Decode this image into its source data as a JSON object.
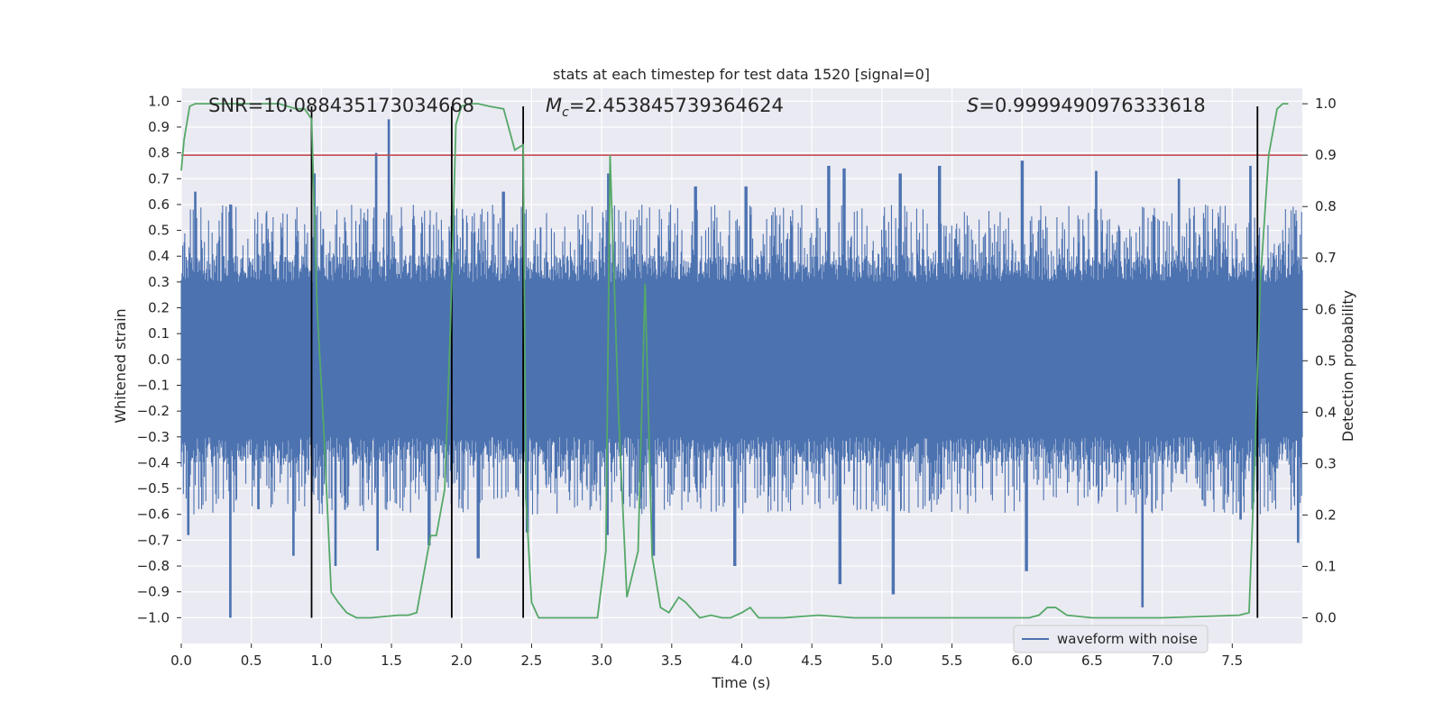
{
  "chart_data": {
    "type": "line",
    "title": "stats at each timestep for test data 1520 [signal=0]",
    "xlabel": "Time (s)",
    "ylabel_left": "Whitened strain",
    "ylabel_right": "Detection probability",
    "xlim": [
      0.0,
      8.0
    ],
    "ylim_left": [
      -1.1,
      1.05
    ],
    "ylim_right": [
      -0.05,
      1.03
    ],
    "x_ticks": [
      "0.0",
      "0.5",
      "1.0",
      "1.5",
      "2.0",
      "2.5",
      "3.0",
      "3.5",
      "4.0",
      "4.5",
      "5.0",
      "5.5",
      "6.0",
      "6.5",
      "7.0",
      "7.5"
    ],
    "y_ticks_left": [
      "1.0",
      "0.9",
      "0.8",
      "0.7",
      "0.6",
      "0.5",
      "0.4",
      "0.3",
      "0.2",
      "0.1",
      "0.0",
      "−0.1",
      "−0.2",
      "−0.3",
      "−0.4",
      "−0.5",
      "−0.6",
      "−0.7",
      "−0.8",
      "−0.9",
      "−1.0"
    ],
    "y_ticks_right": [
      "1.0",
      "0.9",
      "0.8",
      "0.7",
      "0.6",
      "0.5",
      "0.4",
      "0.3",
      "0.2",
      "0.1",
      "0.0"
    ],
    "grid": true,
    "legend": {
      "position": "bottom-right",
      "entries": [
        "waveform with noise"
      ]
    },
    "annotations": {
      "snr": "SNR=10.088435173034668",
      "mc_symbol": "M",
      "mc_sub": "c",
      "mc_value": "=2.453845739364624",
      "s_symbol": "S",
      "s_value": "=0.9999490976333618"
    },
    "series": [
      {
        "name": "waveform with noise",
        "axis": "left",
        "color": "#4c72b0",
        "style": "noise band",
        "core_amplitude": 0.3,
        "spike_amplitude_typical": 0.6,
        "peaks_high": [
          [
            0.1,
            0.65
          ],
          [
            0.35,
            0.6
          ],
          [
            0.95,
            0.72
          ],
          [
            1.39,
            0.8
          ],
          [
            1.48,
            0.93
          ],
          [
            2.3,
            0.65
          ],
          [
            3.05,
            0.72
          ],
          [
            3.67,
            0.67
          ],
          [
            4.03,
            0.67
          ],
          [
            4.62,
            0.75
          ],
          [
            4.73,
            0.74
          ],
          [
            5.13,
            0.72
          ],
          [
            5.41,
            0.75
          ],
          [
            6.0,
            0.77
          ],
          [
            6.53,
            0.73
          ],
          [
            7.12,
            0.7
          ],
          [
            7.63,
            0.75
          ]
        ],
        "peaks_low": [
          [
            0.05,
            -0.68
          ],
          [
            0.35,
            -1.0
          ],
          [
            0.55,
            -0.58
          ],
          [
            0.8,
            -0.76
          ],
          [
            1.1,
            -0.8
          ],
          [
            1.4,
            -0.74
          ],
          [
            1.77,
            -0.72
          ],
          [
            2.12,
            -0.77
          ],
          [
            2.47,
            -0.67
          ],
          [
            3.04,
            -0.68
          ],
          [
            3.37,
            -0.76
          ],
          [
            3.95,
            -0.8
          ],
          [
            4.7,
            -0.87
          ],
          [
            5.08,
            -0.91
          ],
          [
            6.03,
            -0.82
          ],
          [
            6.86,
            -0.96
          ],
          [
            7.56,
            -0.62
          ],
          [
            7.97,
            -0.71
          ]
        ]
      },
      {
        "name": "detection probability",
        "axis": "right",
        "color": "#55a868",
        "x": [
          0.0,
          0.02,
          0.06,
          0.1,
          0.5,
          0.7,
          0.82,
          0.88,
          0.93,
          0.97,
          1.02,
          1.07,
          1.12,
          1.18,
          1.25,
          1.35,
          1.55,
          1.62,
          1.68,
          1.72,
          1.78,
          1.82,
          1.88,
          1.92,
          1.96,
          2.0,
          2.05,
          2.12,
          2.2,
          2.3,
          2.38,
          2.44,
          2.46,
          2.5,
          2.55,
          2.6,
          2.72,
          2.97,
          3.03,
          3.06,
          3.12,
          3.18,
          3.26,
          3.31,
          3.36,
          3.42,
          3.48,
          3.55,
          3.6,
          3.7,
          3.78,
          3.86,
          3.92,
          4.0,
          4.06,
          4.12,
          4.18,
          4.3,
          4.55,
          4.8,
          5.2,
          6.05,
          6.12,
          6.18,
          6.24,
          6.32,
          6.5,
          7.0,
          7.55,
          7.62,
          7.66,
          7.7,
          7.76,
          7.82,
          7.86,
          7.9
        ],
        "y": [
          0.87,
          0.93,
          0.995,
          1.0,
          1.0,
          1.0,
          0.99,
          0.99,
          0.97,
          0.6,
          0.35,
          0.05,
          0.03,
          0.01,
          0.0,
          0.0,
          0.005,
          0.005,
          0.01,
          0.07,
          0.16,
          0.16,
          0.25,
          0.56,
          0.96,
          0.995,
          1.0,
          1.0,
          0.995,
          0.99,
          0.91,
          0.92,
          0.23,
          0.03,
          0.0,
          0.0,
          0.0,
          0.0,
          0.13,
          0.9,
          0.4,
          0.04,
          0.13,
          0.65,
          0.12,
          0.02,
          0.01,
          0.04,
          0.03,
          0.0,
          0.005,
          0.0,
          0.0,
          0.01,
          0.02,
          0.0,
          0.0,
          0.0,
          0.005,
          0.0,
          0.0,
          0.0,
          0.005,
          0.02,
          0.02,
          0.005,
          0.0,
          0.0,
          0.005,
          0.01,
          0.3,
          0.65,
          0.9,
          0.99,
          1.0,
          1.0
        ]
      }
    ],
    "threshold_line": {
      "axis": "right",
      "value": 0.9,
      "color": "#c44e52"
    },
    "vertical_markers": {
      "x": [
        0.93,
        1.93,
        2.44,
        7.68
      ],
      "color": "#000000",
      "axis_right_from": 0.0,
      "axis_right_to": 0.995
    }
  }
}
